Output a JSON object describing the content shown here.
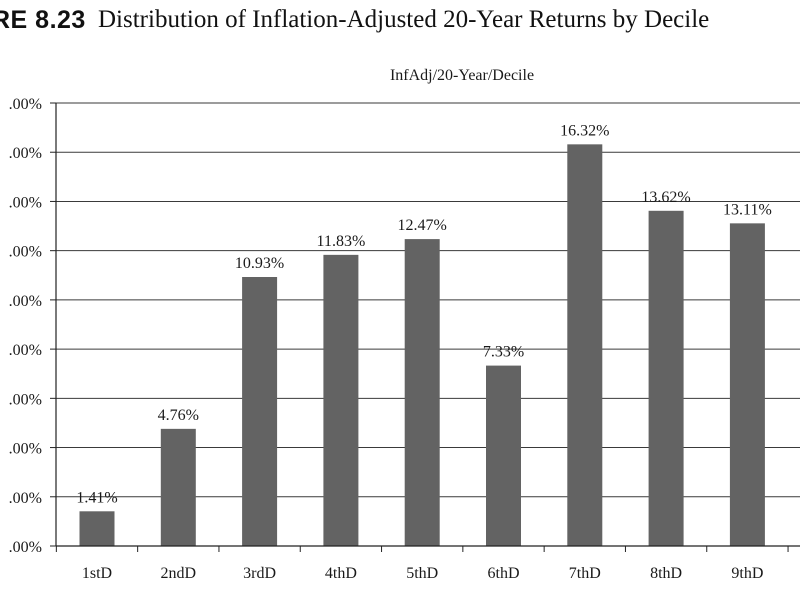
{
  "figure": {
    "label": "RE 8.23",
    "caption": "Distribution of Inflation-Adjusted 20-Year Returns by Decile"
  },
  "chart_data": {
    "type": "bar",
    "title": "InfAdj/20-Year/Decile",
    "categories": [
      "1stD",
      "2ndD",
      "3rdD",
      "4thD",
      "5thD",
      "6thD",
      "7thD",
      "8thD",
      "9thD"
    ],
    "values": [
      1.41,
      4.76,
      10.93,
      11.83,
      12.47,
      7.33,
      16.32,
      13.62,
      13.11
    ],
    "data_labels": [
      "1.41%",
      "4.76%",
      "10.93%",
      "11.83%",
      "12.47%",
      "7.33%",
      "16.32%",
      "13.62%",
      "13.11%"
    ],
    "ylim": [
      0,
      18
    ],
    "y_ticks": [
      0,
      2,
      4,
      6,
      8,
      10,
      12,
      14,
      16,
      18
    ],
    "y_tick_labels": [
      ".00%",
      ".00%",
      ".00%",
      ".00%",
      ".00%",
      ".00%",
      ".00%",
      ".00%",
      ".00%",
      ".00%"
    ],
    "xlabel": "",
    "ylabel": "",
    "grid": true,
    "legend": "none",
    "bar_color": "#636363"
  }
}
